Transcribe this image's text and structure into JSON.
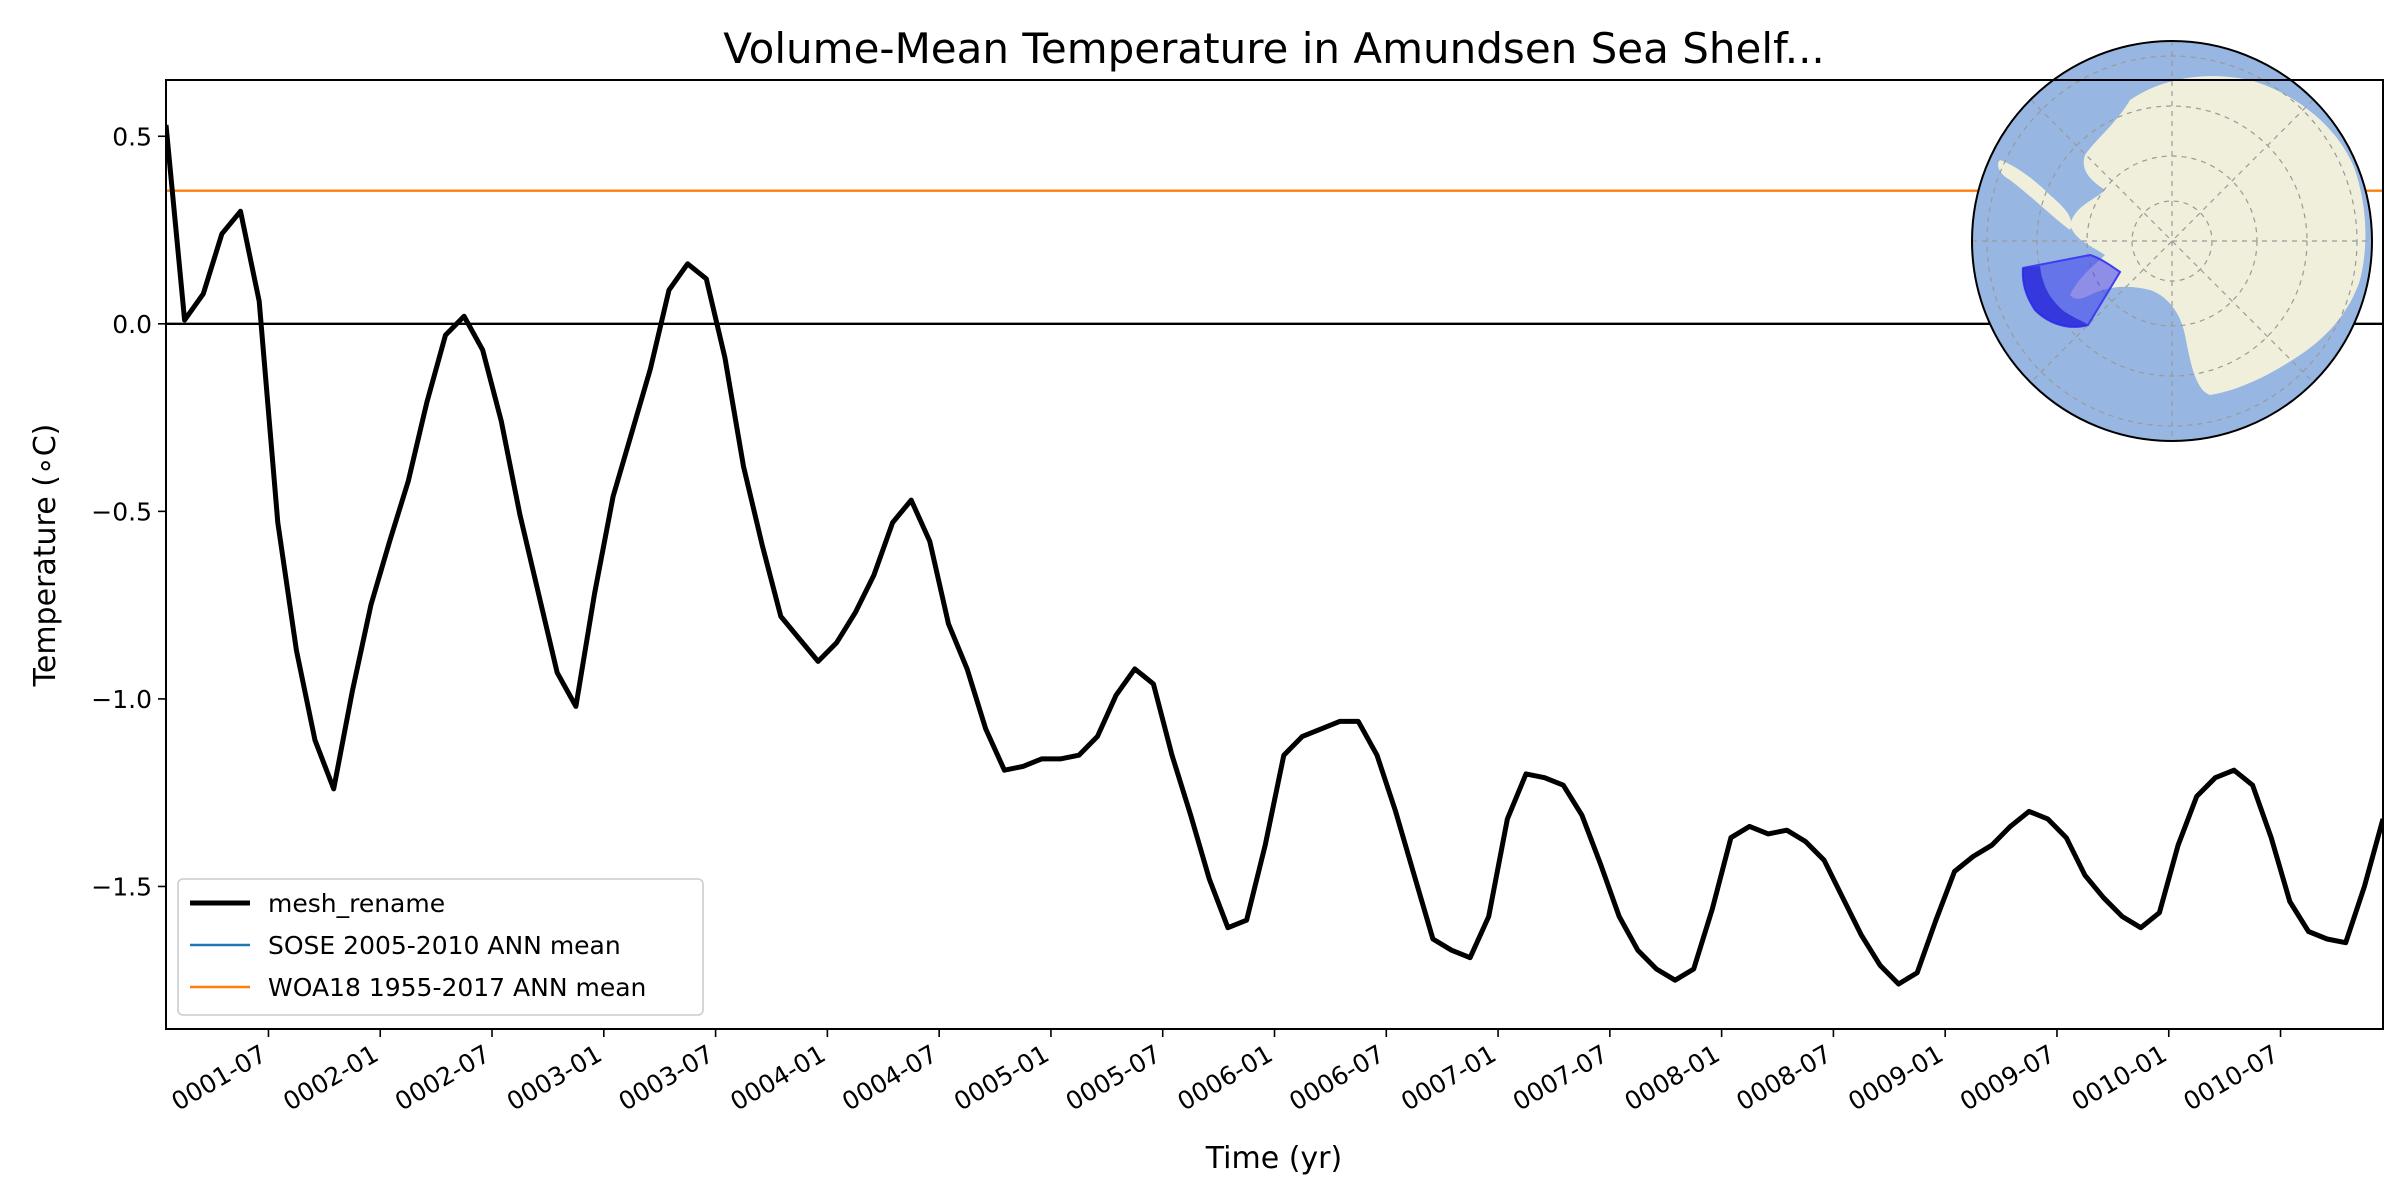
{
  "chart_data": {
    "type": "line",
    "title": "Volume-Mean Temperature in Amundsen Sea Shelf...",
    "xlabel": "Time (yr)",
    "ylabel": "Temperature (∘C)",
    "ylim": [
      -1.88,
      0.65
    ],
    "yticks": [
      {
        "value": 0.5,
        "label": "0.5"
      },
      {
        "value": 0.0,
        "label": "0.0"
      },
      {
        "value": -0.5,
        "label": "−0.5"
      },
      {
        "value": -1.0,
        "label": "−1.0"
      },
      {
        "value": -1.5,
        "label": "−1.5"
      }
    ],
    "x_unit": "months since 0001-01",
    "xlim": [
      0.5,
      119.5
    ],
    "xticks": [
      {
        "value": 6,
        "label": "0001-07"
      },
      {
        "value": 12,
        "label": "0002-01"
      },
      {
        "value": 18,
        "label": "0002-07"
      },
      {
        "value": 24,
        "label": "0003-01"
      },
      {
        "value": 30,
        "label": "0003-07"
      },
      {
        "value": 36,
        "label": "0004-01"
      },
      {
        "value": 42,
        "label": "0004-07"
      },
      {
        "value": 48,
        "label": "0005-01"
      },
      {
        "value": 54,
        "label": "0005-07"
      },
      {
        "value": 60,
        "label": "0006-01"
      },
      {
        "value": 66,
        "label": "0006-07"
      },
      {
        "value": 72,
        "label": "0007-01"
      },
      {
        "value": 78,
        "label": "0007-07"
      },
      {
        "value": 84,
        "label": "0008-01"
      },
      {
        "value": 90,
        "label": "0008-07"
      },
      {
        "value": 96,
        "label": "0009-01"
      },
      {
        "value": 102,
        "label": "0009-07"
      },
      {
        "value": 108,
        "label": "0010-01"
      },
      {
        "value": 114,
        "label": "0010-07"
      }
    ],
    "series": [
      {
        "name": "mesh_rename",
        "color": "#000000",
        "x": [
          0.5,
          1.5,
          2.5,
          3.5,
          4.5,
          5.5,
          6.5,
          7.5,
          8.5,
          9.5,
          10.5,
          11.5,
          12.5,
          13.5,
          14.5,
          15.5,
          16.5,
          17.5,
          18.5,
          19.5,
          20.5,
          21.5,
          22.5,
          23.5,
          24.5,
          25.5,
          26.5,
          27.5,
          28.5,
          29.5,
          30.5,
          31.5,
          32.5,
          33.5,
          34.5,
          35.5,
          36.5,
          37.5,
          38.5,
          39.5,
          40.5,
          41.5,
          42.5,
          43.5,
          44.5,
          45.5,
          46.5,
          47.5,
          48.5,
          49.5,
          50.5,
          51.5,
          52.5,
          53.5,
          54.5,
          55.5,
          56.5,
          57.5,
          58.5,
          59.5,
          60.5,
          61.5,
          62.5,
          63.5,
          64.5,
          65.5,
          66.5,
          67.5,
          68.5,
          69.5,
          70.5,
          71.5,
          72.5,
          73.5,
          74.5,
          75.5,
          76.5,
          77.5,
          78.5,
          79.5,
          80.5,
          81.5,
          82.5,
          83.5,
          84.5,
          85.5,
          86.5,
          87.5,
          88.5,
          89.5,
          90.5,
          91.5,
          92.5,
          93.5,
          94.5,
          95.5,
          96.5,
          97.5,
          98.5,
          99.5,
          100.5,
          101.5,
          102.5,
          103.5,
          104.5,
          105.5,
          106.5,
          107.5,
          108.5,
          109.5,
          110.5,
          111.5,
          112.5,
          113.5,
          114.5,
          115.5,
          116.5,
          117.5,
          118.5,
          119.5
        ],
        "y": [
          0.53,
          0.01,
          0.08,
          0.24,
          0.3,
          0.06,
          -0.53,
          -0.87,
          -1.11,
          -1.24,
          -0.98,
          -0.75,
          -0.58,
          -0.42,
          -0.21,
          -0.03,
          0.02,
          -0.07,
          -0.26,
          -0.51,
          -0.72,
          -0.93,
          -1.02,
          -0.72,
          -0.46,
          -0.29,
          -0.12,
          0.09,
          0.16,
          0.12,
          -0.09,
          -0.38,
          -0.59,
          -0.78,
          -0.84,
          -0.9,
          -0.85,
          -0.77,
          -0.67,
          -0.53,
          -0.47,
          -0.58,
          -0.8,
          -0.92,
          -1.08,
          -1.19,
          -1.18,
          -1.16,
          -1.16,
          -1.15,
          -1.1,
          -0.99,
          -0.92,
          -0.96,
          -1.15,
          -1.31,
          -1.48,
          -1.61,
          -1.59,
          -1.39,
          -1.15,
          -1.1,
          -1.08,
          -1.06,
          -1.06,
          -1.15,
          -1.3,
          -1.47,
          -1.64,
          -1.67,
          -1.69,
          -1.58,
          -1.32,
          -1.2,
          -1.21,
          -1.23,
          -1.31,
          -1.44,
          -1.58,
          -1.67,
          -1.72,
          -1.75,
          -1.72,
          -1.56,
          -1.37,
          -1.34,
          -1.36,
          -1.35,
          -1.38,
          -1.43,
          -1.53,
          -1.63,
          -1.71,
          -1.76,
          -1.73,
          -1.59,
          -1.46,
          -1.42,
          -1.39,
          -1.34,
          -1.3,
          -1.32,
          -1.37,
          -1.47,
          -1.53,
          -1.58,
          -1.61,
          -1.57,
          -1.39,
          -1.26,
          -1.21,
          -1.19,
          -1.23,
          -1.37,
          -1.54,
          -1.62,
          -1.64,
          -1.65,
          -1.5,
          -1.32
        ]
      }
    ],
    "hlines": [
      {
        "name": "SOSE 2005-2010 ANN mean",
        "color": "#1f77b4",
        "y": null
      },
      {
        "name": "WOA18 1955-2017 ANN mean",
        "color": "#ff7f0e",
        "y": 0.355
      },
      {
        "name": "zero-line",
        "color": "#000000",
        "y": 0.0
      }
    ],
    "legend_placement": "lower-left",
    "legend": [
      {
        "label": "mesh_rename",
        "color": "#000000"
      },
      {
        "label": "SOSE 2005-2010 ANN mean",
        "color": "#1f77b4"
      },
      {
        "label": "WOA18 1955-2017 ANN mean",
        "color": "#ff7f0e"
      }
    ],
    "grid": false,
    "inset_map": {
      "type": "south-polar-stereographic",
      "ocean_color": "#97b6e1",
      "land_color": "#efefdb",
      "region_color": "#3e3ef0"
    }
  }
}
